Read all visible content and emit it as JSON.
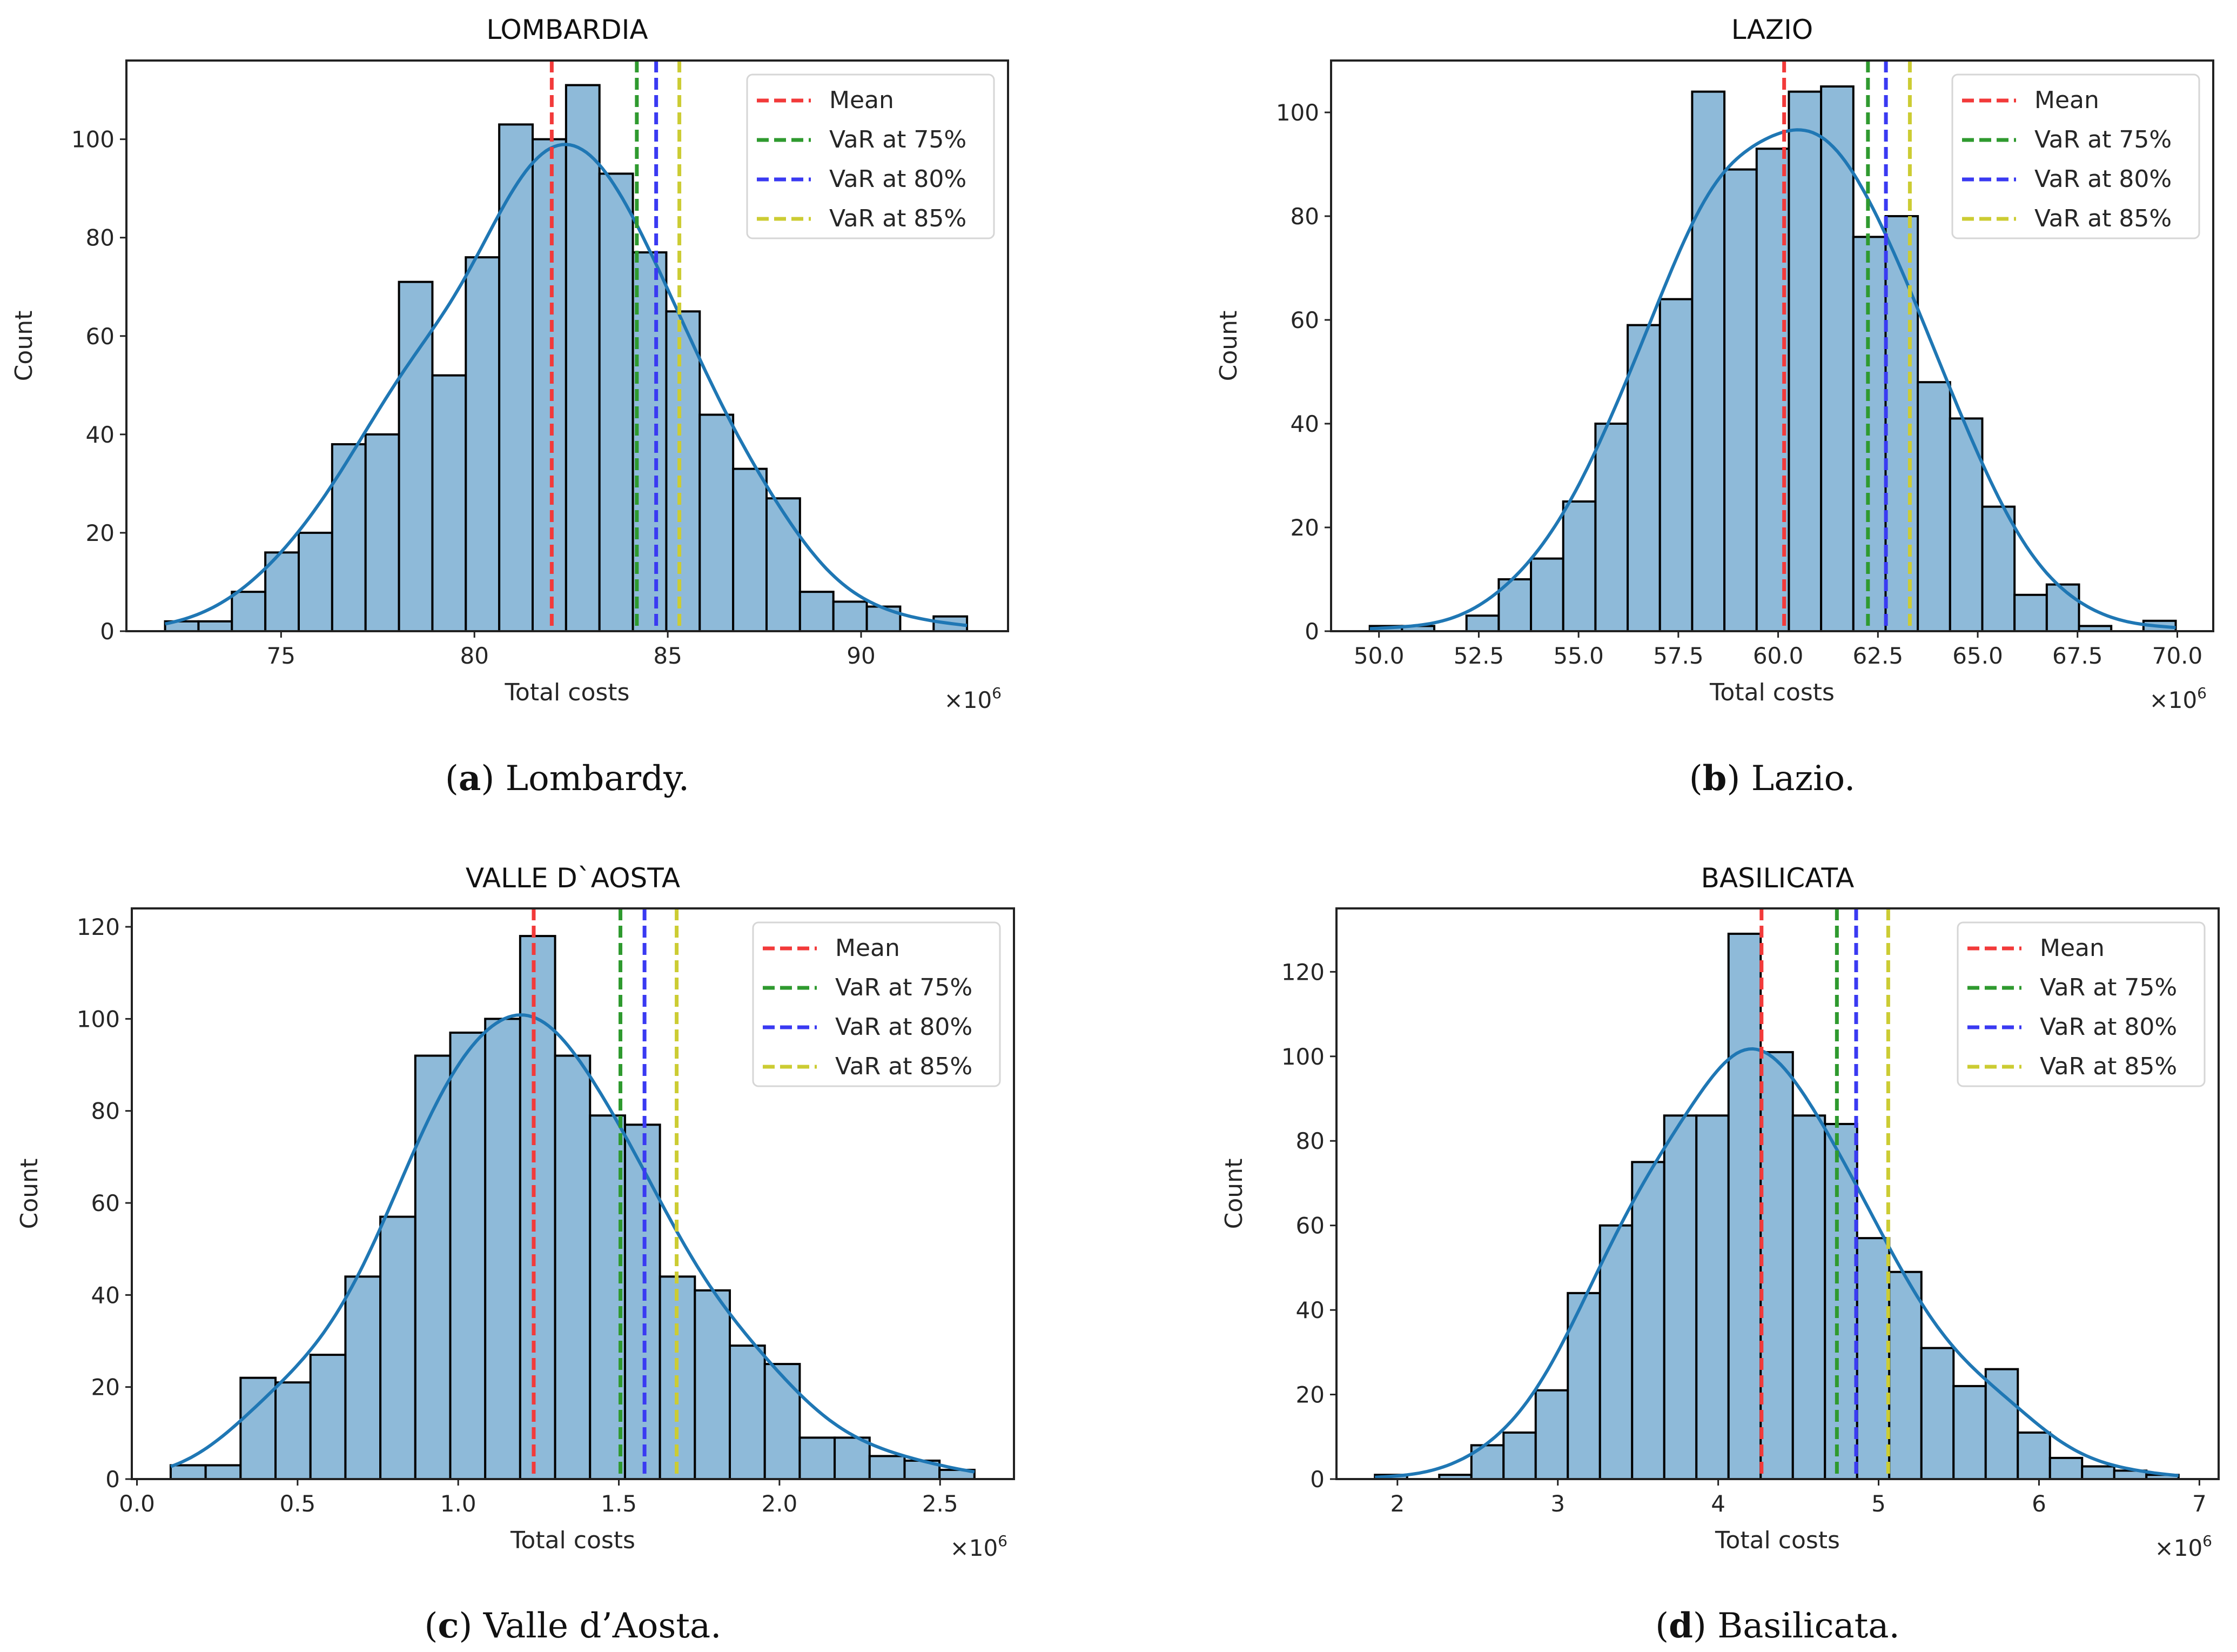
{
  "chart_data": [
    {
      "type": "bar",
      "panel": "a",
      "title": "LOMBARDIA",
      "xlabel": "Total costs",
      "ylabel": "Count",
      "x_multiplier": "×10",
      "x_multiplier_exp": "6",
      "caption_label": "a",
      "caption_text": "Lombardy.",
      "bin_start": 72.0,
      "bin_end": 92.74,
      "counts": [
        2,
        2,
        8,
        16,
        20,
        38,
        40,
        71,
        52,
        76,
        103,
        100,
        111,
        93,
        77,
        65,
        44,
        33,
        27,
        8,
        6,
        5,
        0,
        3
      ],
      "xlim": [
        71.0,
        93.8
      ],
      "ylim": [
        0,
        116
      ],
      "xticks": [
        75,
        80,
        85,
        90
      ],
      "xtick_labels": [
        "75",
        "80",
        "85",
        "90"
      ],
      "yticks": [
        0,
        20,
        40,
        60,
        80,
        100
      ],
      "ytick_labels": [
        "0",
        "20",
        "40",
        "60",
        "80",
        "100"
      ],
      "lines": {
        "mean": 82.0,
        "var75": 84.2,
        "var80": 84.7,
        "var85": 85.3
      }
    },
    {
      "type": "bar",
      "panel": "b",
      "title": "LAZIO",
      "xlabel": "Total costs",
      "ylabel": "Count",
      "x_multiplier": "×10",
      "x_multiplier_exp": "6",
      "caption_label": "b",
      "caption_text": "Lazio.",
      "bin_start": 49.77,
      "bin_end": 69.96,
      "counts": [
        1,
        1,
        0,
        3,
        10,
        14,
        25,
        40,
        59,
        64,
        104,
        89,
        93,
        104,
        105,
        76,
        80,
        48,
        41,
        24,
        7,
        9,
        1,
        0,
        2
      ],
      "xlim": [
        48.8,
        70.9
      ],
      "ylim": [
        0,
        110
      ],
      "xticks": [
        50,
        52.5,
        55,
        57.5,
        60,
        62.5,
        65,
        67.5,
        70
      ],
      "xtick_labels": [
        "50.0",
        "52.5",
        "55.0",
        "57.5",
        "60.0",
        "62.5",
        "65.0",
        "67.5",
        "70.0"
      ],
      "yticks": [
        0,
        20,
        40,
        60,
        80,
        100
      ],
      "ytick_labels": [
        "0",
        "20",
        "40",
        "60",
        "80",
        "100"
      ],
      "lines": {
        "mean": 60.15,
        "var75": 62.25,
        "var80": 62.7,
        "var85": 63.3
      }
    },
    {
      "type": "bar",
      "panel": "c",
      "title": "VALLE D`AOSTA",
      "xlabel": "Total costs",
      "ylabel": "Count",
      "x_multiplier": "×10",
      "x_multiplier_exp": "6",
      "caption_label": "c",
      "caption_text": "Valle d’Aosta.",
      "bin_start": 0.105,
      "bin_end": 2.607,
      "counts": [
        3,
        3,
        22,
        21,
        27,
        44,
        57,
        92,
        97,
        100,
        118,
        92,
        79,
        77,
        44,
        41,
        29,
        25,
        9,
        9,
        5,
        4,
        2
      ],
      "xlim": [
        -0.016,
        2.73
      ],
      "ylim": [
        0,
        124
      ],
      "xticks": [
        0,
        0.5,
        1,
        1.5,
        2,
        2.5
      ],
      "xtick_labels": [
        "0.0",
        "0.5",
        "1.0",
        "1.5",
        "2.0",
        "2.5"
      ],
      "yticks": [
        0,
        20,
        40,
        60,
        80,
        100,
        120
      ],
      "ytick_labels": [
        "0",
        "20",
        "40",
        "60",
        "80",
        "100",
        "120"
      ],
      "lines": {
        "mean": 1.235,
        "var75": 1.505,
        "var80": 1.58,
        "var85": 1.68
      }
    },
    {
      "type": "bar",
      "panel": "d",
      "title": "BASILICATA",
      "xlabel": "Total costs",
      "ylabel": "Count",
      "x_multiplier": "×10",
      "x_multiplier_exp": "6",
      "caption_label": "d",
      "caption_text": "Basilicata.",
      "bin_start": 1.86,
      "bin_end": 6.87,
      "counts": [
        1,
        0,
        1,
        8,
        11,
        21,
        44,
        60,
        75,
        86,
        86,
        129,
        101,
        86,
        84,
        57,
        49,
        31,
        22,
        26,
        11,
        5,
        3,
        2,
        1
      ],
      "xlim": [
        1.62,
        7.12
      ],
      "ylim": [
        0,
        135
      ],
      "xticks": [
        2,
        3,
        4,
        5,
        6,
        7
      ],
      "xtick_labels": [
        "2",
        "3",
        "4",
        "5",
        "6",
        "7"
      ],
      "yticks": [
        0,
        20,
        40,
        60,
        80,
        100,
        120
      ],
      "ytick_labels": [
        "0",
        "20",
        "40",
        "60",
        "80",
        "100",
        "120"
      ],
      "lines": {
        "mean": 4.27,
        "var75": 4.74,
        "var80": 4.86,
        "var85": 5.06
      }
    }
  ],
  "legend": [
    {
      "key": "mean",
      "label": "Mean",
      "color": "#f23a3a"
    },
    {
      "key": "var75",
      "label": "VaR at 75%",
      "color": "#2f9a2f"
    },
    {
      "key": "var80",
      "label": "VaR at 80%",
      "color": "#3a3af2"
    },
    {
      "key": "var85",
      "label": "VaR at 85%",
      "color": "#cccc33"
    }
  ],
  "colors": {
    "bar_fill": "#8ebad9",
    "bar_edge": "#000000",
    "kde": "#1f77b4"
  }
}
